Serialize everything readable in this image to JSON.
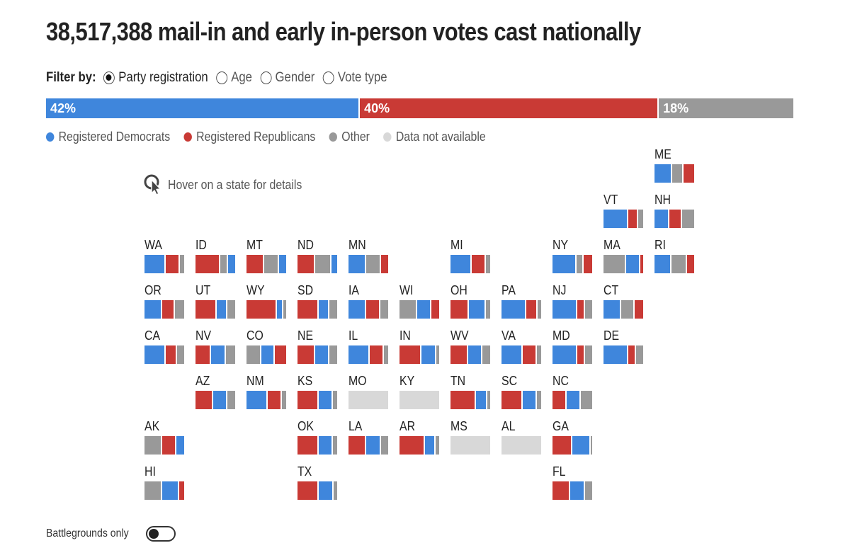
{
  "title": "38,517,388 mail-in and early in-person votes cast nationally",
  "filter": {
    "label": "Filter by:",
    "options": [
      {
        "label": "Party registration",
        "selected": true
      },
      {
        "label": "Age",
        "selected": false
      },
      {
        "label": "Gender",
        "selected": false
      },
      {
        "label": "Vote type",
        "selected": false
      }
    ]
  },
  "colors": {
    "dem": "#3f86dc",
    "rep": "#c93a35",
    "other": "#999999",
    "na": "#d8d8d8"
  },
  "national": [
    {
      "key": "dem",
      "label": "42%",
      "value": 42
    },
    {
      "key": "rep",
      "label": "40%",
      "value": 40
    },
    {
      "key": "other",
      "label": "18%",
      "value": 18
    }
  ],
  "legend": [
    {
      "key": "dem",
      "label": "Registered Democrats"
    },
    {
      "key": "rep",
      "label": "Registered Republicans"
    },
    {
      "key": "other",
      "label": "Other"
    },
    {
      "key": "na",
      "label": "Data not available"
    }
  ],
  "hover_hint": "Hover on a state for details",
  "states": [
    {
      "abbr": "ME",
      "col": 10,
      "row": 0,
      "segs": [
        [
          "dem",
          45
        ],
        [
          "other",
          28
        ],
        [
          "rep",
          27
        ]
      ]
    },
    {
      "abbr": "VT",
      "col": 9,
      "row": 1,
      "segs": [
        [
          "dem",
          63
        ],
        [
          "rep",
          25
        ],
        [
          "other",
          12
        ]
      ]
    },
    {
      "abbr": "NH",
      "col": 10,
      "row": 1,
      "segs": [
        [
          "dem",
          37
        ],
        [
          "rep",
          33
        ],
        [
          "other",
          30
        ]
      ]
    },
    {
      "abbr": "WA",
      "col": 0,
      "row": 2,
      "segs": [
        [
          "dem",
          53
        ],
        [
          "rep",
          37
        ],
        [
          "other",
          10
        ]
      ]
    },
    {
      "abbr": "ID",
      "col": 1,
      "row": 2,
      "segs": [
        [
          "rep",
          63
        ],
        [
          "other",
          19
        ],
        [
          "dem",
          18
        ]
      ]
    },
    {
      "abbr": "MT",
      "col": 2,
      "row": 2,
      "segs": [
        [
          "rep",
          45
        ],
        [
          "other",
          37
        ],
        [
          "dem",
          18
        ]
      ]
    },
    {
      "abbr": "ND",
      "col": 3,
      "row": 2,
      "segs": [
        [
          "rep",
          45
        ],
        [
          "other",
          41
        ],
        [
          "dem",
          14
        ]
      ]
    },
    {
      "abbr": "MN",
      "col": 4,
      "row": 2,
      "segs": [
        [
          "dem",
          45
        ],
        [
          "other",
          37
        ],
        [
          "rep",
          18
        ]
      ]
    },
    {
      "abbr": "MI",
      "col": 6,
      "row": 2,
      "segs": [
        [
          "dem",
          53
        ],
        [
          "rep",
          37
        ],
        [
          "other",
          10
        ]
      ]
    },
    {
      "abbr": "NY",
      "col": 8,
      "row": 2,
      "segs": [
        [
          "dem",
          60
        ],
        [
          "other",
          18
        ],
        [
          "rep",
          22
        ]
      ]
    },
    {
      "abbr": "MA",
      "col": 9,
      "row": 2,
      "segs": [
        [
          "other",
          57
        ],
        [
          "dem",
          35
        ],
        [
          "rep",
          8
        ]
      ]
    },
    {
      "abbr": "RI",
      "col": 10,
      "row": 2,
      "segs": [
        [
          "dem",
          43
        ],
        [
          "other",
          40
        ],
        [
          "rep",
          17
        ]
      ]
    },
    {
      "abbr": "OR",
      "col": 0,
      "row": 3,
      "segs": [
        [
          "dem",
          44
        ],
        [
          "rep",
          33
        ],
        [
          "other",
          23
        ]
      ]
    },
    {
      "abbr": "UT",
      "col": 1,
      "row": 3,
      "segs": [
        [
          "rep",
          54
        ],
        [
          "dem",
          27
        ],
        [
          "other",
          19
        ]
      ]
    },
    {
      "abbr": "WY",
      "col": 2,
      "row": 3,
      "segs": [
        [
          "rep",
          77
        ],
        [
          "dem",
          16
        ],
        [
          "other",
          7
        ]
      ]
    },
    {
      "abbr": "SD",
      "col": 3,
      "row": 3,
      "segs": [
        [
          "rep",
          54
        ],
        [
          "dem",
          27
        ],
        [
          "other",
          19
        ]
      ]
    },
    {
      "abbr": "IA",
      "col": 4,
      "row": 3,
      "segs": [
        [
          "dem",
          44
        ],
        [
          "rep",
          37
        ],
        [
          "other",
          19
        ]
      ]
    },
    {
      "abbr": "WI",
      "col": 5,
      "row": 3,
      "segs": [
        [
          "other",
          44
        ],
        [
          "dem",
          36
        ],
        [
          "rep",
          20
        ]
      ]
    },
    {
      "abbr": "OH",
      "col": 6,
      "row": 3,
      "segs": [
        [
          "rep",
          46
        ],
        [
          "dem",
          44
        ],
        [
          "other",
          10
        ]
      ]
    },
    {
      "abbr": "PA",
      "col": 7,
      "row": 3,
      "segs": [
        [
          "dem",
          63
        ],
        [
          "rep",
          28
        ],
        [
          "other",
          9
        ]
      ]
    },
    {
      "abbr": "NJ",
      "col": 8,
      "row": 3,
      "segs": [
        [
          "dem",
          63
        ],
        [
          "rep",
          19
        ],
        [
          "other",
          18
        ]
      ]
    },
    {
      "abbr": "CT",
      "col": 9,
      "row": 3,
      "segs": [
        [
          "dem",
          44
        ],
        [
          "other",
          35
        ],
        [
          "rep",
          21
        ]
      ]
    },
    {
      "abbr": "CA",
      "col": 0,
      "row": 4,
      "segs": [
        [
          "dem",
          53
        ],
        [
          "rep",
          29
        ],
        [
          "other",
          18
        ]
      ]
    },
    {
      "abbr": "NV",
      "col": 1,
      "row": 4,
      "segs": [
        [
          "rep",
          40
        ],
        [
          "dem",
          36
        ],
        [
          "other",
          24
        ]
      ]
    },
    {
      "abbr": "CO",
      "col": 2,
      "row": 4,
      "segs": [
        [
          "other",
          38
        ],
        [
          "dem",
          33
        ],
        [
          "rep",
          29
        ]
      ]
    },
    {
      "abbr": "NE",
      "col": 3,
      "row": 4,
      "segs": [
        [
          "rep",
          44
        ],
        [
          "dem",
          37
        ],
        [
          "other",
          19
        ]
      ]
    },
    {
      "abbr": "IL",
      "col": 4,
      "row": 4,
      "segs": [
        [
          "dem",
          54
        ],
        [
          "rep",
          36
        ],
        [
          "other",
          10
        ]
      ]
    },
    {
      "abbr": "IN",
      "col": 5,
      "row": 4,
      "segs": [
        [
          "rep",
          55
        ],
        [
          "dem",
          37
        ],
        [
          "other",
          8
        ]
      ]
    },
    {
      "abbr": "WV",
      "col": 6,
      "row": 4,
      "segs": [
        [
          "rep",
          44
        ],
        [
          "dem",
          36
        ],
        [
          "other",
          20
        ]
      ]
    },
    {
      "abbr": "VA",
      "col": 7,
      "row": 4,
      "segs": [
        [
          "dem",
          53
        ],
        [
          "rep",
          37
        ],
        [
          "other",
          10
        ]
      ]
    },
    {
      "abbr": "MD",
      "col": 8,
      "row": 4,
      "segs": [
        [
          "dem",
          63
        ],
        [
          "rep",
          19
        ],
        [
          "other",
          18
        ]
      ]
    },
    {
      "abbr": "DE",
      "col": 9,
      "row": 4,
      "segs": [
        [
          "dem",
          63
        ],
        [
          "rep",
          20
        ],
        [
          "other",
          17
        ]
      ]
    },
    {
      "abbr": "AZ",
      "col": 1,
      "row": 5,
      "segs": [
        [
          "rep",
          44
        ],
        [
          "dem",
          36
        ],
        [
          "other",
          20
        ]
      ]
    },
    {
      "abbr": "NM",
      "col": 2,
      "row": 5,
      "segs": [
        [
          "dem",
          53
        ],
        [
          "rep",
          37
        ],
        [
          "other",
          10
        ]
      ]
    },
    {
      "abbr": "KS",
      "col": 3,
      "row": 5,
      "segs": [
        [
          "rep",
          54
        ],
        [
          "dem",
          36
        ],
        [
          "other",
          10
        ]
      ]
    },
    {
      "abbr": "MO",
      "col": 4,
      "row": 5,
      "segs": [
        [
          "na",
          100
        ]
      ]
    },
    {
      "abbr": "KY",
      "col": 5,
      "row": 5,
      "segs": [
        [
          "na",
          100
        ]
      ]
    },
    {
      "abbr": "TN",
      "col": 6,
      "row": 5,
      "segs": [
        [
          "rep",
          64
        ],
        [
          "dem",
          29
        ],
        [
          "other",
          7
        ]
      ]
    },
    {
      "abbr": "SC",
      "col": 7,
      "row": 5,
      "segs": [
        [
          "rep",
          54
        ],
        [
          "dem",
          36
        ],
        [
          "other",
          10
        ]
      ]
    },
    {
      "abbr": "NC",
      "col": 8,
      "row": 5,
      "segs": [
        [
          "rep",
          36
        ],
        [
          "dem",
          36
        ],
        [
          "other",
          28
        ]
      ]
    },
    {
      "abbr": "AK",
      "col": 0,
      "row": 6,
      "segs": [
        [
          "other",
          44
        ],
        [
          "rep",
          36
        ],
        [
          "dem",
          20
        ]
      ]
    },
    {
      "abbr": "OK",
      "col": 3,
      "row": 6,
      "segs": [
        [
          "rep",
          54
        ],
        [
          "dem",
          36
        ],
        [
          "other",
          10
        ]
      ]
    },
    {
      "abbr": "LA",
      "col": 4,
      "row": 6,
      "segs": [
        [
          "rep",
          45
        ],
        [
          "dem",
          37
        ],
        [
          "other",
          18
        ]
      ]
    },
    {
      "abbr": "AR",
      "col": 5,
      "row": 6,
      "segs": [
        [
          "rep",
          64
        ],
        [
          "dem",
          27
        ],
        [
          "other",
          9
        ]
      ]
    },
    {
      "abbr": "MS",
      "col": 6,
      "row": 6,
      "segs": [
        [
          "na",
          100
        ]
      ]
    },
    {
      "abbr": "AL",
      "col": 7,
      "row": 6,
      "segs": [
        [
          "na",
          100
        ]
      ]
    },
    {
      "abbr": "GA",
      "col": 8,
      "row": 6,
      "segs": [
        [
          "rep",
          50
        ],
        [
          "dem",
          47
        ],
        [
          "other",
          3
        ]
      ]
    },
    {
      "abbr": "HI",
      "col": 0,
      "row": 7,
      "segs": [
        [
          "other",
          44
        ],
        [
          "dem",
          44
        ],
        [
          "rep",
          12
        ]
      ]
    },
    {
      "abbr": "TX",
      "col": 3,
      "row": 7,
      "segs": [
        [
          "rep",
          53
        ],
        [
          "dem",
          38
        ],
        [
          "other",
          9
        ]
      ]
    },
    {
      "abbr": "FL",
      "col": 8,
      "row": 7,
      "segs": [
        [
          "rep",
          45
        ],
        [
          "dem",
          37
        ],
        [
          "other",
          18
        ]
      ]
    }
  ],
  "toggle": {
    "label": "Battlegrounds only",
    "on": false
  }
}
